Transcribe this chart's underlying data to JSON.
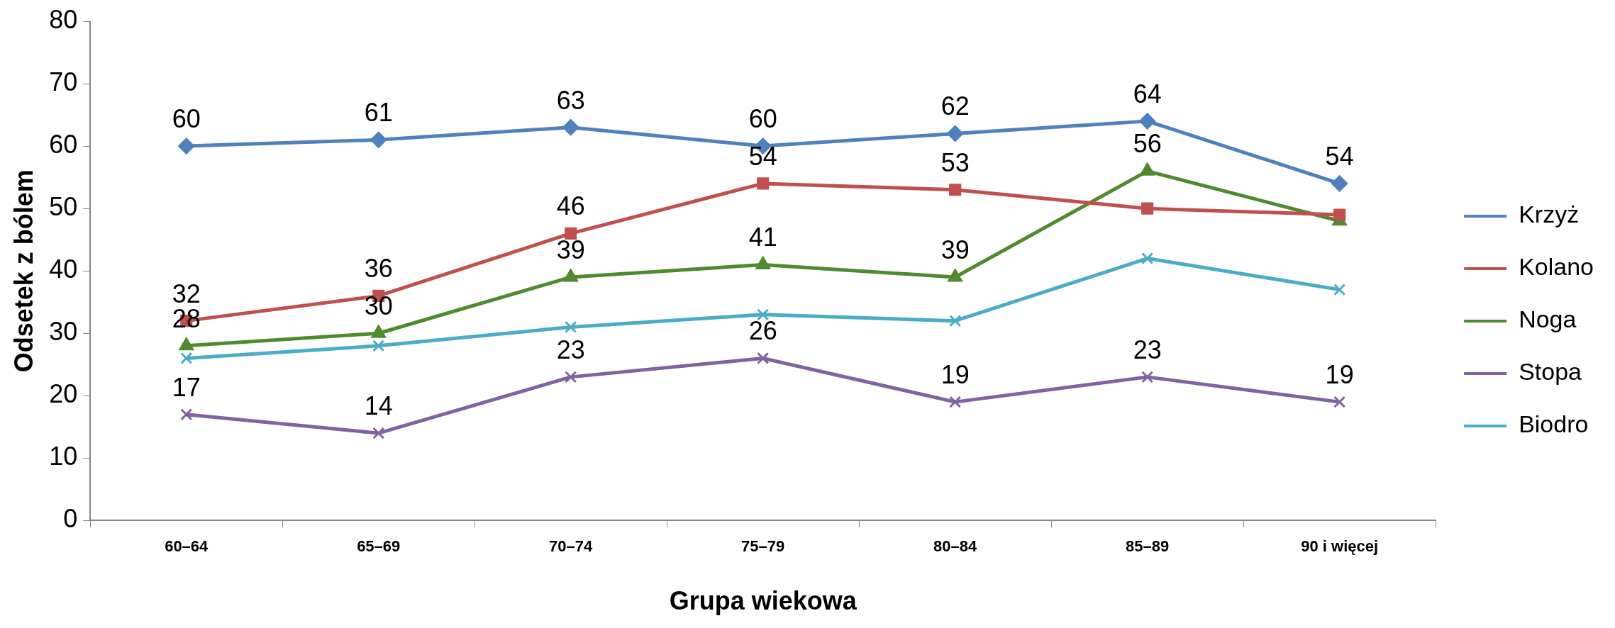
{
  "chart_data": {
    "type": "line",
    "xlabel": "Grupa wiekowa",
    "ylabel": "Odsetek z bólem",
    "categories": [
      "60–64",
      "65–69",
      "70–74",
      "75–79",
      "80–84",
      "85–89",
      "90 i więcej"
    ],
    "ylim": [
      0,
      80
    ],
    "yticks": [
      0,
      10,
      20,
      30,
      40,
      50,
      60,
      70,
      80
    ],
    "grid": false,
    "legend": "right",
    "line_style": "solid",
    "series": [
      {
        "name": "Krzyż",
        "color": "#4f81bd",
        "marker": "diamond",
        "values": [
          60,
          61,
          63,
          60,
          62,
          64,
          54
        ],
        "value_labels": [
          "60",
          "61",
          "63",
          "60",
          "62",
          "64",
          "54"
        ]
      },
      {
        "name": "Kolano",
        "color": "#c0504d",
        "marker": "square",
        "values": [
          32,
          36,
          46,
          54,
          53,
          50,
          49
        ],
        "value_labels": [
          "32",
          "36",
          "46",
          "54",
          "53",
          null,
          null
        ]
      },
      {
        "name": "Noga",
        "color": "#4f8a2f",
        "marker": "triangle",
        "values": [
          28,
          30,
          39,
          41,
          39,
          56,
          48
        ],
        "value_labels": [
          "28",
          "30",
          "39",
          "41",
          "39",
          "56",
          null
        ]
      },
      {
        "name": "Stopa",
        "color": "#8064a2",
        "marker": "cross",
        "values": [
          17,
          14,
          23,
          26,
          19,
          23,
          19
        ],
        "value_labels": [
          "17",
          "14",
          "23",
          "26",
          "19",
          "23",
          "19"
        ]
      },
      {
        "name": "Biodro",
        "color": "#4bacc6",
        "marker": "cross",
        "values": [
          26,
          28,
          31,
          33,
          32,
          42,
          37
        ]
      }
    ]
  }
}
